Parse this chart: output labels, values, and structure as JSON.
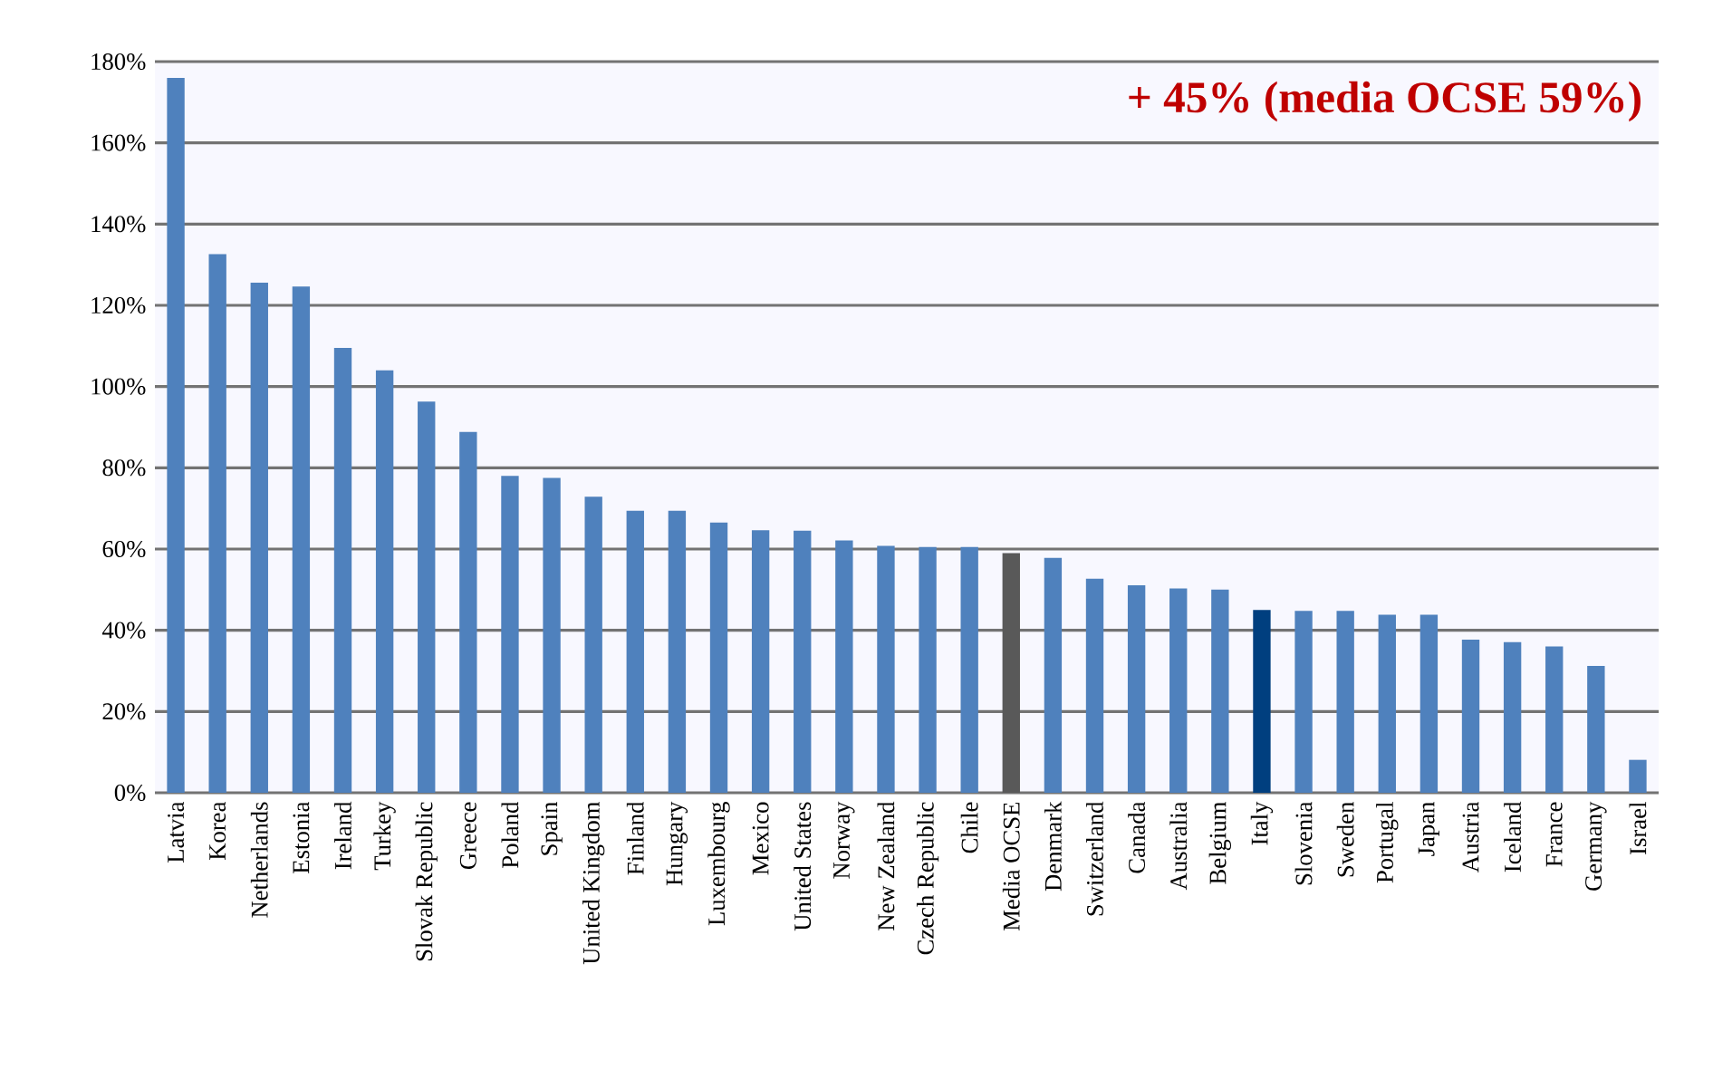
{
  "chart_data": {
    "type": "bar",
    "categories": [
      "Latvia",
      "Korea",
      "Netherlands",
      "Estonia",
      "Ireland",
      "Turkey",
      "Slovak Republic",
      "Greece",
      "Poland",
      "Spain",
      "United Kingdom",
      "Finland",
      "Hungary",
      "Luxembourg",
      "Mexico",
      "United States",
      "Norway",
      "New Zealand",
      "Czech Republic",
      "Chile",
      "Media OCSE",
      "Denmark",
      "Switzerland",
      "Canada",
      "Australia",
      "Belgium",
      "Italy",
      "Slovenia",
      "Sweden",
      "Portugal",
      "Japan",
      "Austria",
      "Iceland",
      "France",
      "Germany",
      "Israel"
    ],
    "values": [
      176,
      132.6,
      125.6,
      124.6,
      109.5,
      104,
      96.3,
      88.8,
      78,
      77.5,
      72.9,
      69.4,
      69.4,
      66.5,
      64.6,
      64.5,
      62.1,
      60.8,
      60.5,
      60.5,
      59,
      57.8,
      52.7,
      51.1,
      50.3,
      50,
      45,
      44.8,
      44.8,
      43.8,
      43.8,
      37.7,
      37.1,
      36,
      31.2,
      8.1
    ],
    "colors": [
      "#4f81bd",
      "#4f81bd",
      "#4f81bd",
      "#4f81bd",
      "#4f81bd",
      "#4f81bd",
      "#4f81bd",
      "#4f81bd",
      "#4f81bd",
      "#4f81bd",
      "#4f81bd",
      "#4f81bd",
      "#4f81bd",
      "#4f81bd",
      "#4f81bd",
      "#4f81bd",
      "#4f81bd",
      "#4f81bd",
      "#4f81bd",
      "#4f81bd",
      "#595959",
      "#4f81bd",
      "#4f81bd",
      "#4f81bd",
      "#4f81bd",
      "#4f81bd",
      "#003f7f",
      "#4f81bd",
      "#4f81bd",
      "#4f81bd",
      "#4f81bd",
      "#4f81bd",
      "#4f81bd",
      "#4f81bd",
      "#4f81bd",
      "#4f81bd"
    ],
    "ylim": [
      0,
      180
    ],
    "yticks": [
      {
        "value": 0,
        "label": "0%"
      },
      {
        "value": 20,
        "label": "20%"
      },
      {
        "value": 40,
        "label": "40%"
      },
      {
        "value": 60,
        "label": "60%"
      },
      {
        "value": 80,
        "label": "80%"
      },
      {
        "value": 100,
        "label": "100%"
      },
      {
        "value": 120,
        "label": "120%"
      },
      {
        "value": 140,
        "label": "140%"
      },
      {
        "value": 160,
        "label": "160%"
      },
      {
        "value": 180,
        "label": "180%"
      }
    ],
    "grid": "y",
    "annotations": [
      "+ 45% (media OCSE 59%)"
    ]
  }
}
